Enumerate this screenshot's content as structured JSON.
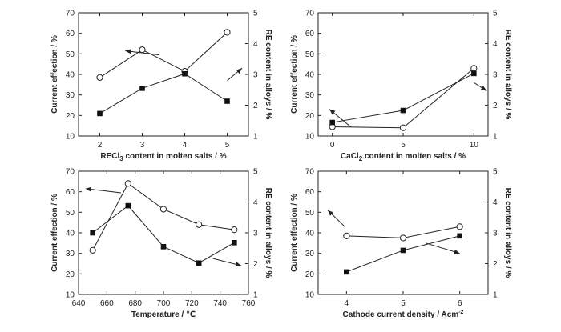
{
  "chart_data": [
    {
      "type": "line",
      "xlabel": "RECl",
      "xlabel_sub": "3",
      "xlabel_suffix": " content in molten salts / %",
      "ylabel_left": "Current effection / %",
      "ylabel_right": "RE content in alloys / %",
      "xlim": [
        1.5,
        5.5
      ],
      "ylim_left": [
        10,
        70
      ],
      "ylim_right": [
        1,
        5
      ],
      "x_ticks": [
        "2",
        "3",
        "4",
        "5"
      ],
      "y_ticks_left": [
        "10",
        "20",
        "30",
        "40",
        "50",
        "60",
        "70"
      ],
      "y_ticks_right": [
        "1",
        "2",
        "3",
        "4",
        "5"
      ],
      "series": [
        {
          "name": "Current effection",
          "marker": "open-circle",
          "axis": "left",
          "x": [
            2,
            3,
            4,
            5
          ],
          "values": [
            38.5,
            52,
            41.5,
            60.5
          ]
        },
        {
          "name": "RE content in alloys",
          "marker": "filled-square",
          "axis": "right",
          "x": [
            2,
            3,
            4,
            5
          ],
          "values": [
            1.73,
            2.55,
            3.02,
            2.13
          ]
        }
      ],
      "arrows": [
        {
          "points_to": "left",
          "x": [
            3.4,
            2.6
          ],
          "y_left": [
            49.5,
            51.5
          ]
        },
        {
          "points_to": "right",
          "x": [
            5.0,
            5.35
          ],
          "y_left": [
            37,
            43
          ]
        }
      ]
    },
    {
      "type": "line",
      "xlabel": "CaCl",
      "xlabel_sub": "2",
      "xlabel_suffix": " content in molten salts / %",
      "ylabel_left": "Current effection / %",
      "ylabel_right": "RE content in alloys / %",
      "xlim": [
        -1,
        11
      ],
      "ylim_left": [
        10,
        70
      ],
      "ylim_right": [
        1,
        5
      ],
      "x_ticks": [
        "0",
        "5",
        "10"
      ],
      "y_ticks_left": [
        "10",
        "20",
        "30",
        "40",
        "50",
        "60",
        "70"
      ],
      "y_ticks_right": [
        "1",
        "2",
        "3",
        "4",
        "5"
      ],
      "series": [
        {
          "name": "Current effection",
          "marker": "open-circle",
          "axis": "left",
          "x": [
            0,
            5,
            10
          ],
          "values": [
            14.5,
            14,
            43
          ]
        },
        {
          "name": "RE content in alloys",
          "marker": "filled-square",
          "axis": "right",
          "x": [
            0,
            5,
            10
          ],
          "values": [
            1.44,
            1.83,
            3.03
          ]
        }
      ],
      "arrows": [
        {
          "points_to": "left",
          "x": [
            1.3,
            -0.2
          ],
          "y_left": [
            14.5,
            23
          ]
        },
        {
          "points_to": "right",
          "x": [
            10.0,
            10.9
          ],
          "y_left": [
            36,
            32
          ]
        }
      ]
    },
    {
      "type": "line",
      "xlabel": "Temperature / ℃",
      "xlabel_sub": "",
      "xlabel_suffix": "",
      "ylabel_left": "Current effection / %",
      "ylabel_right": "RE content in alloys / %",
      "xlim": [
        640,
        760
      ],
      "ylim_left": [
        10,
        70
      ],
      "ylim_right": [
        1,
        5
      ],
      "x_ticks": [
        "640",
        "660",
        "680",
        "700",
        "720",
        "740",
        "760"
      ],
      "y_ticks_left": [
        "10",
        "20",
        "30",
        "40",
        "50",
        "60",
        "70"
      ],
      "y_ticks_right": [
        "1",
        "2",
        "3",
        "4",
        "5"
      ],
      "series": [
        {
          "name": "Current effection",
          "marker": "open-circle",
          "axis": "left",
          "x": [
            650,
            675,
            700,
            725,
            750
          ],
          "values": [
            31.5,
            64,
            51.5,
            44,
            41.5
          ]
        },
        {
          "name": "RE content in alloys",
          "marker": "filled-square",
          "axis": "right",
          "x": [
            650,
            675,
            700,
            725,
            750
          ],
          "values": [
            3.0,
            3.88,
            2.55,
            2.02,
            2.68
          ]
        }
      ],
      "arrows": [
        {
          "points_to": "left",
          "x": [
            670,
            645
          ],
          "y_left": [
            59.5,
            61.5
          ]
        },
        {
          "points_to": "right",
          "x": [
            735,
            755
          ],
          "y_left": [
            27.5,
            24
          ]
        }
      ]
    },
    {
      "type": "line",
      "xlabel": "Cathode current density / Acm",
      "xlabel_sub": "",
      "xlabel_suffix": "",
      "xlabel_sup": "-2",
      "ylabel_left": "Current effection / %",
      "ylabel_right": "RE content in alloys / %",
      "xlim": [
        3.5,
        6.5
      ],
      "ylim_left": [
        10,
        70
      ],
      "ylim_right": [
        1,
        5
      ],
      "x_ticks": [
        "4",
        "5",
        "6"
      ],
      "y_ticks_left": [
        "10",
        "20",
        "30",
        "40",
        "50",
        "60",
        "70"
      ],
      "y_ticks_right": [
        "1",
        "2",
        "3",
        "4",
        "5"
      ],
      "series": [
        {
          "name": "Current effection",
          "marker": "open-circle",
          "axis": "left",
          "x": [
            4,
            5,
            6
          ],
          "values": [
            38.5,
            37.5,
            43
          ]
        },
        {
          "name": "RE content in alloys",
          "marker": "filled-square",
          "axis": "right",
          "x": [
            4,
            5,
            6
          ],
          "values": [
            1.73,
            2.43,
            2.9
          ]
        }
      ],
      "arrows": [
        {
          "points_to": "left",
          "x": [
            3.97,
            3.67
          ],
          "y_left": [
            43,
            51
          ]
        },
        {
          "points_to": "right",
          "x": [
            5.4,
            6.0
          ],
          "y_left": [
            35,
            30
          ]
        }
      ]
    }
  ]
}
